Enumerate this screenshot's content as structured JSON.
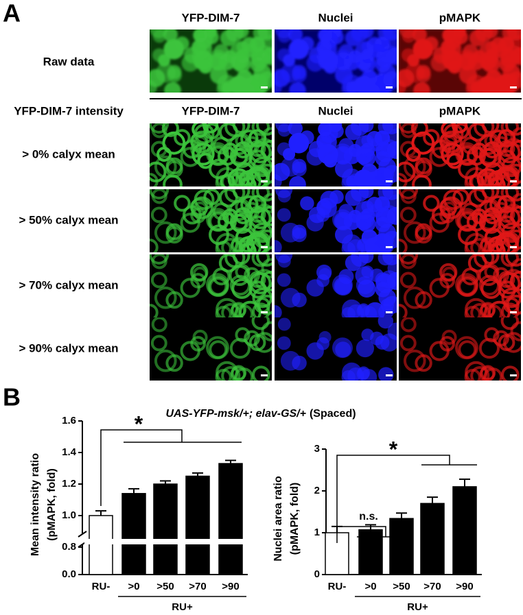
{
  "panel_a": {
    "label": "A",
    "column_headers": [
      "YFP-DIM-7",
      "Nuclei",
      "pMAPK"
    ],
    "raw_row_label": "Raw data",
    "section_header": "YFP-DIM-7 intensity",
    "section_column_headers": [
      "YFP-DIM-7",
      "Nuclei",
      "pMAPK"
    ],
    "row_labels": [
      "> 0% calyx mean",
      "> 50% calyx mean",
      "> 70% calyx mean",
      "> 90% calyx mean"
    ]
  },
  "panel_b": {
    "label": "B",
    "title_italic": "UAS-YFP-msk/+; elav-GS/+",
    "title_suffix": "(Spaced)"
  },
  "chart_data": [
    {
      "type": "bar",
      "ylabel": [
        "Mean intensity ratio",
        "(pMAPK, fold)"
      ],
      "categories": [
        "RU-",
        ">0",
        ">50",
        ">70",
        ">90"
      ],
      "values": [
        1.0,
        1.14,
        1.2,
        1.25,
        1.33
      ],
      "errors": [
        0.03,
        0.03,
        0.02,
        0.02,
        0.02
      ],
      "colors": [
        "#ffffff",
        "#000000",
        "#000000",
        "#000000",
        "#000000"
      ],
      "ylim": [
        0,
        1.6
      ],
      "ybreak": [
        0.8,
        0.9
      ],
      "yticks": [
        {
          "value": 0,
          "label": "0.0"
        },
        0.8,
        {
          "value": 1,
          "label": "1.0"
        },
        1.2,
        1.4,
        1.6
      ],
      "group_label": "RU+",
      "annotations": [
        "*"
      ]
    },
    {
      "type": "bar",
      "ylabel": [
        "Nuclei area ratio",
        "(pMAPK, fold)"
      ],
      "categories": [
        "RU-",
        ">0",
        ">50",
        ">70",
        ">90"
      ],
      "values": [
        1.0,
        1.07,
        1.34,
        1.7,
        2.1
      ],
      "errors": [
        0.15,
        0.12,
        0.13,
        0.15,
        0.18
      ],
      "colors": [
        "#ffffff",
        "#000000",
        "#000000",
        "#000000",
        "#000000"
      ],
      "ylim": [
        0,
        3
      ],
      "yticks": [
        0,
        1,
        2,
        3
      ],
      "group_label": "RU+",
      "annotations": [
        "n.s.",
        "*"
      ]
    }
  ]
}
